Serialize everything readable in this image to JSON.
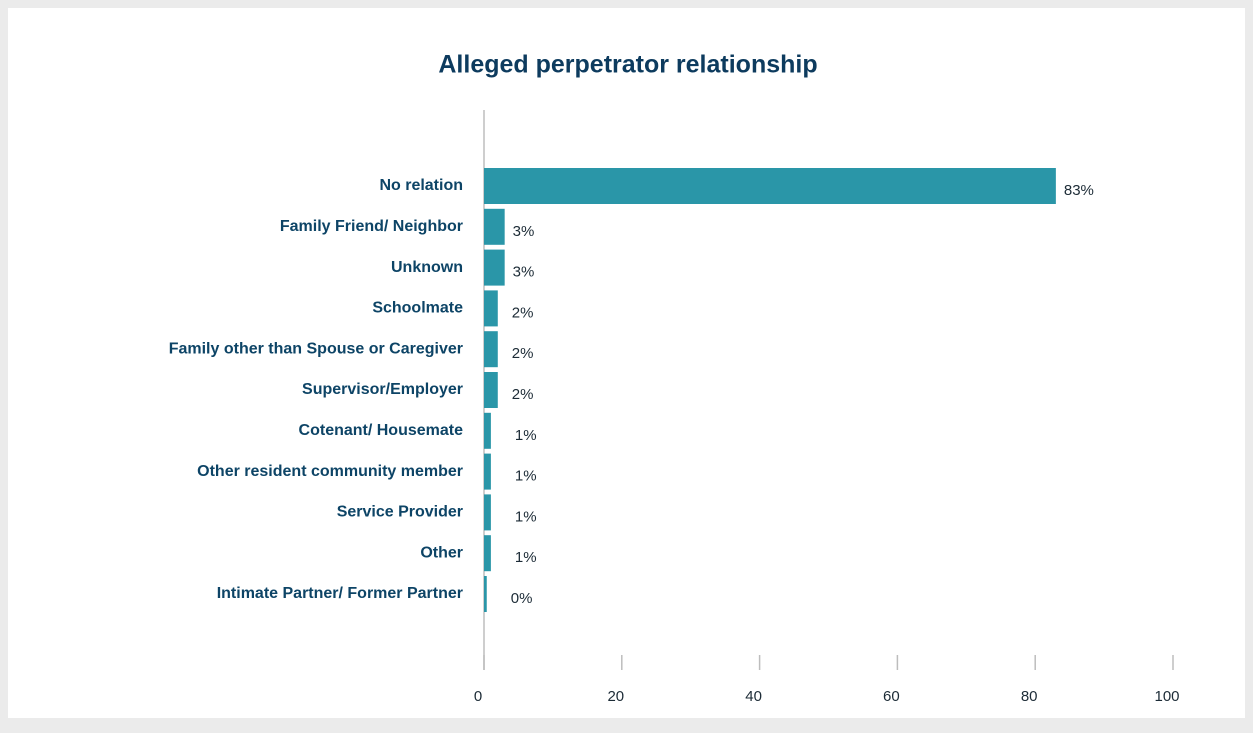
{
  "chart_data": {
    "type": "hbar",
    "title": "Alleged perpetrator relationship",
    "categories": [
      "No relation",
      "Family Friend/ Neighbor",
      "Unknown",
      "Schoolmate",
      "Family other than Spouse or Caregiver",
      "Supervisor/Employer",
      "Cotenant/ Housemate",
      "Other resident community member",
      "Service Provider",
      "Other",
      "Intimate Partner/ Former Partner"
    ],
    "values": [
      83,
      3,
      3,
      2,
      2,
      2,
      1,
      1,
      1,
      1,
      0.4
    ],
    "value_labels": [
      "83%",
      "3%",
      "3%",
      "2%",
      "2%",
      "2%",
      "1%",
      "1%",
      "1%",
      "1%",
      "0%"
    ],
    "color": "#2a96a8",
    "xlim": [
      0,
      100
    ],
    "xticks": [
      0,
      20,
      40,
      60,
      80,
      100
    ]
  }
}
